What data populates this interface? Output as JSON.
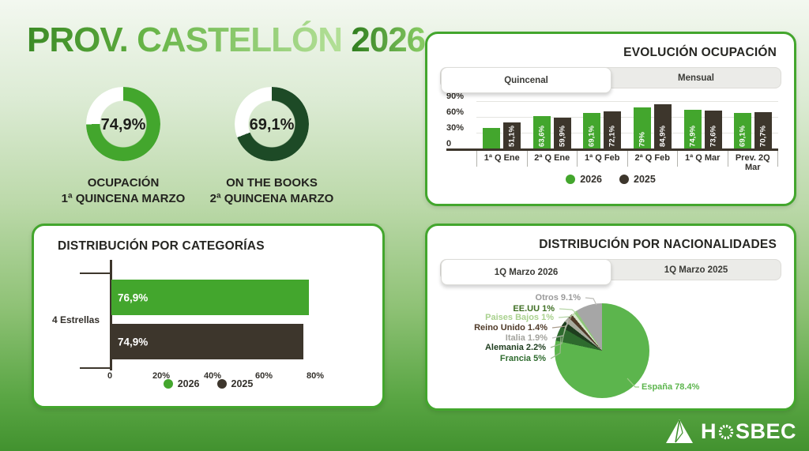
{
  "header": {
    "words": [
      "PROV.",
      "CASTELLÓN",
      "2026"
    ]
  },
  "kpis": [
    {
      "value": "74,9%",
      "pct": 74.9,
      "color": "#43a62d",
      "rest_color": "#ffffff",
      "caption": [
        "OCUPACIÓN",
        "1ª QUINCENA MARZO"
      ]
    },
    {
      "value": "69,1%",
      "pct": 69.1,
      "color": "#1d4a26",
      "rest_color": "#ffffff",
      "caption": [
        "ON THE BOOKS",
        "2ª QUINCENA MARZO"
      ]
    }
  ],
  "evolucion": {
    "title": "EVOLUCIÓN OCUPACIÓN",
    "tabs": [
      {
        "label": "Quincenal",
        "active": true
      },
      {
        "label": "Mensual",
        "active": false
      }
    ],
    "chart_data": {
      "type": "bar",
      "categories": [
        "1ª Q Ene",
        "2ª Q Ene",
        "1ª Q Feb",
        "2ª Q Feb",
        "1ª Q Mar",
        "Prev. 2Q Mar"
      ],
      "series": [
        {
          "name": "2026",
          "color": "#43a62d",
          "values": [
            41,
            63.6,
            69.1,
            79,
            74.9,
            69.1
          ],
          "labels": [
            "",
            "63,6%",
            "69,1%",
            "79%",
            "74,9%",
            "69,1%"
          ]
        },
        {
          "name": "2025",
          "color": "#3d362c",
          "values": [
            51.1,
            59.9,
            72.1,
            84.9,
            73.6,
            70.7
          ],
          "labels": [
            "51,1%",
            "59,9%",
            "72,1%",
            "84,9%",
            "73,6%",
            "70,7%"
          ]
        }
      ],
      "ylim": [
        0,
        90
      ],
      "yticks": [
        {
          "label": "0",
          "value": 0
        },
        {
          "label": "30%",
          "value": 30
        },
        {
          "label": "60%",
          "value": 60
        },
        {
          "label": "90%",
          "value": 90
        }
      ],
      "legend_position": "bottom"
    }
  },
  "categorias": {
    "title": "DISTRIBUCIÓN POR CATEGORÍAS",
    "chart_data": {
      "type": "bar",
      "orientation": "horizontal",
      "categories": [
        "4 Estrellas"
      ],
      "series": [
        {
          "name": "2026",
          "color": "#43a62d",
          "values": [
            76.9
          ],
          "labels": [
            "76,9%"
          ]
        },
        {
          "name": "2025",
          "color": "#3d362c",
          "values": [
            74.9
          ],
          "labels": [
            "74,9%"
          ]
        }
      ],
      "xlim": [
        0,
        80
      ],
      "xticks": [
        {
          "label": "0",
          "value": 0
        },
        {
          "label": "20%",
          "value": 20
        },
        {
          "label": "40%",
          "value": 40
        },
        {
          "label": "60%",
          "value": 60
        },
        {
          "label": "80%",
          "value": 80
        }
      ],
      "legend_position": "bottom"
    }
  },
  "nacionalidades": {
    "title": "DISTRIBUCIÓN POR NACIONALIDADES",
    "tabs": [
      {
        "label": "1Q Marzo 2026",
        "active": true
      },
      {
        "label": "1Q Marzo 2025",
        "active": false
      }
    ],
    "chart_data": {
      "type": "pie",
      "slices": [
        {
          "name": "España",
          "label": "España 78.4%",
          "value": 78.4,
          "color": "#5cb54d",
          "label_color": "#5cb54d"
        },
        {
          "name": "Francia",
          "label": "Francia 5%",
          "value": 5,
          "color": "#2e6b2e",
          "label_color": "#2e6b2e"
        },
        {
          "name": "Alemania",
          "label": "Alemania 2.2%",
          "value": 2.2,
          "color": "#1e3d1e",
          "label_color": "#1e3d1e"
        },
        {
          "name": "Italia",
          "label": "Italia 1.9%",
          "value": 1.9,
          "color": "#a8ab9e",
          "label_color": "#a3a39d"
        },
        {
          "name": "Reino Unido",
          "label": "Reino Unido 1.4%",
          "value": 1.4,
          "color": "#4f3a28",
          "label_color": "#4f3a28"
        },
        {
          "name": "Paises Bajos",
          "label": "Paises Bajos 1%",
          "value": 1,
          "color": "#d9e8cd",
          "label_color": "#a9d18e"
        },
        {
          "name": "EE.UU",
          "label": "EE.UU 1%",
          "value": 1,
          "color": "#8fc77b",
          "label_color": "#3f6f24"
        },
        {
          "name": "Otros",
          "label": "Otros 9.1%",
          "value": 9.1,
          "color": "#a6a6a6",
          "label_color": "#9a9a9a"
        }
      ]
    }
  },
  "footer": {
    "brand": "HOSBEC"
  }
}
